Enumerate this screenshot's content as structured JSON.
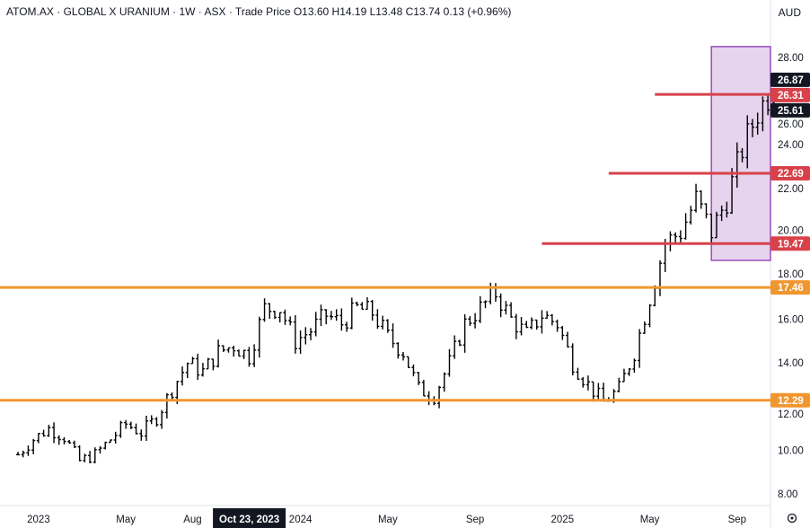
{
  "header": {
    "legend": "ATOM.AX · GLOBAL X URANIUM · 1W · ASX · Trade Price  O13.60  H14.19  L13.48  C13.74  0.13 (+0.96%)",
    "currency": "AUD"
  },
  "chart_data": {
    "type": "ohlc",
    "symbol": "ATOM.AX",
    "title": "GLOBAL X URANIUM",
    "interval": "1W",
    "exchange": "ASX",
    "ylim": [
      8,
      28.5
    ],
    "y_ticks": [
      "28.00",
      "26.00",
      "24.00",
      "22.00",
      "20.00",
      "18.00",
      "16.00",
      "14.00",
      "12.00",
      "10.00",
      "8.00"
    ],
    "y_tick_values": [
      28,
      26,
      24,
      22,
      20,
      18,
      16,
      14,
      12,
      10,
      8
    ],
    "x_ticks": [
      {
        "label": "2023",
        "week": 4
      },
      {
        "label": "May",
        "week": 21
      },
      {
        "label": "Aug",
        "week": 34
      },
      {
        "label": "2024",
        "week": 55
      },
      {
        "label": "May",
        "week": 72
      },
      {
        "label": "Sep",
        "week": 89
      },
      {
        "label": "2025",
        "week": 106
      },
      {
        "label": "May",
        "week": 123
      },
      {
        "label": "Sep",
        "week": 140
      }
    ],
    "crosshair_label": {
      "label": "Oct 23, 2023",
      "week": 46
    },
    "weekly_close_anchors": [
      9.8,
      10.5,
      11.0,
      10.6,
      9.5,
      9.8,
      10.5,
      11.2,
      10.8,
      11.5,
      12.8,
      14.0,
      13.6,
      14.5,
      14.8,
      14.3,
      16.5,
      16.5,
      15.0,
      15.5,
      16.2,
      15.8,
      16.5,
      16.3,
      15.2,
      14.5,
      12.8,
      12.5,
      14.0,
      15.8,
      16.5,
      17.2,
      16.0,
      15.3,
      16.2,
      15.8,
      14.0,
      13.0,
      12.2,
      12.8,
      14.5,
      17.0,
      19.5,
      20.0,
      21.5,
      20.0,
      21.5,
      23.8,
      25.5,
      26.6
    ],
    "horizontal_lines": [
      {
        "value": 17.46,
        "label": "17.46",
        "color": "#f0962e",
        "from_week": 0
      },
      {
        "value": 12.29,
        "label": "12.29",
        "color": "#f0962e",
        "from_week": 0
      },
      {
        "value": 26.31,
        "label": "26.31",
        "color": "#d9414a",
        "from_week": 124
      },
      {
        "value": 22.69,
        "label": "22.69",
        "color": "#d9414a",
        "from_week": 115
      },
      {
        "value": 19.47,
        "label": "19.47",
        "color": "#d9414a",
        "from_week": 102
      }
    ],
    "price_badges": [
      {
        "value": 26.87,
        "label": "26.87",
        "color": "#131722"
      },
      {
        "value": 25.61,
        "label": "25.61",
        "color": "#131722"
      }
    ],
    "highlight_box": {
      "from_week": 135,
      "to_week": 148,
      "top": 28.5,
      "bottom": 18.7,
      "fill": "#e6d3ee",
      "stroke": "#9a4dbd"
    }
  }
}
